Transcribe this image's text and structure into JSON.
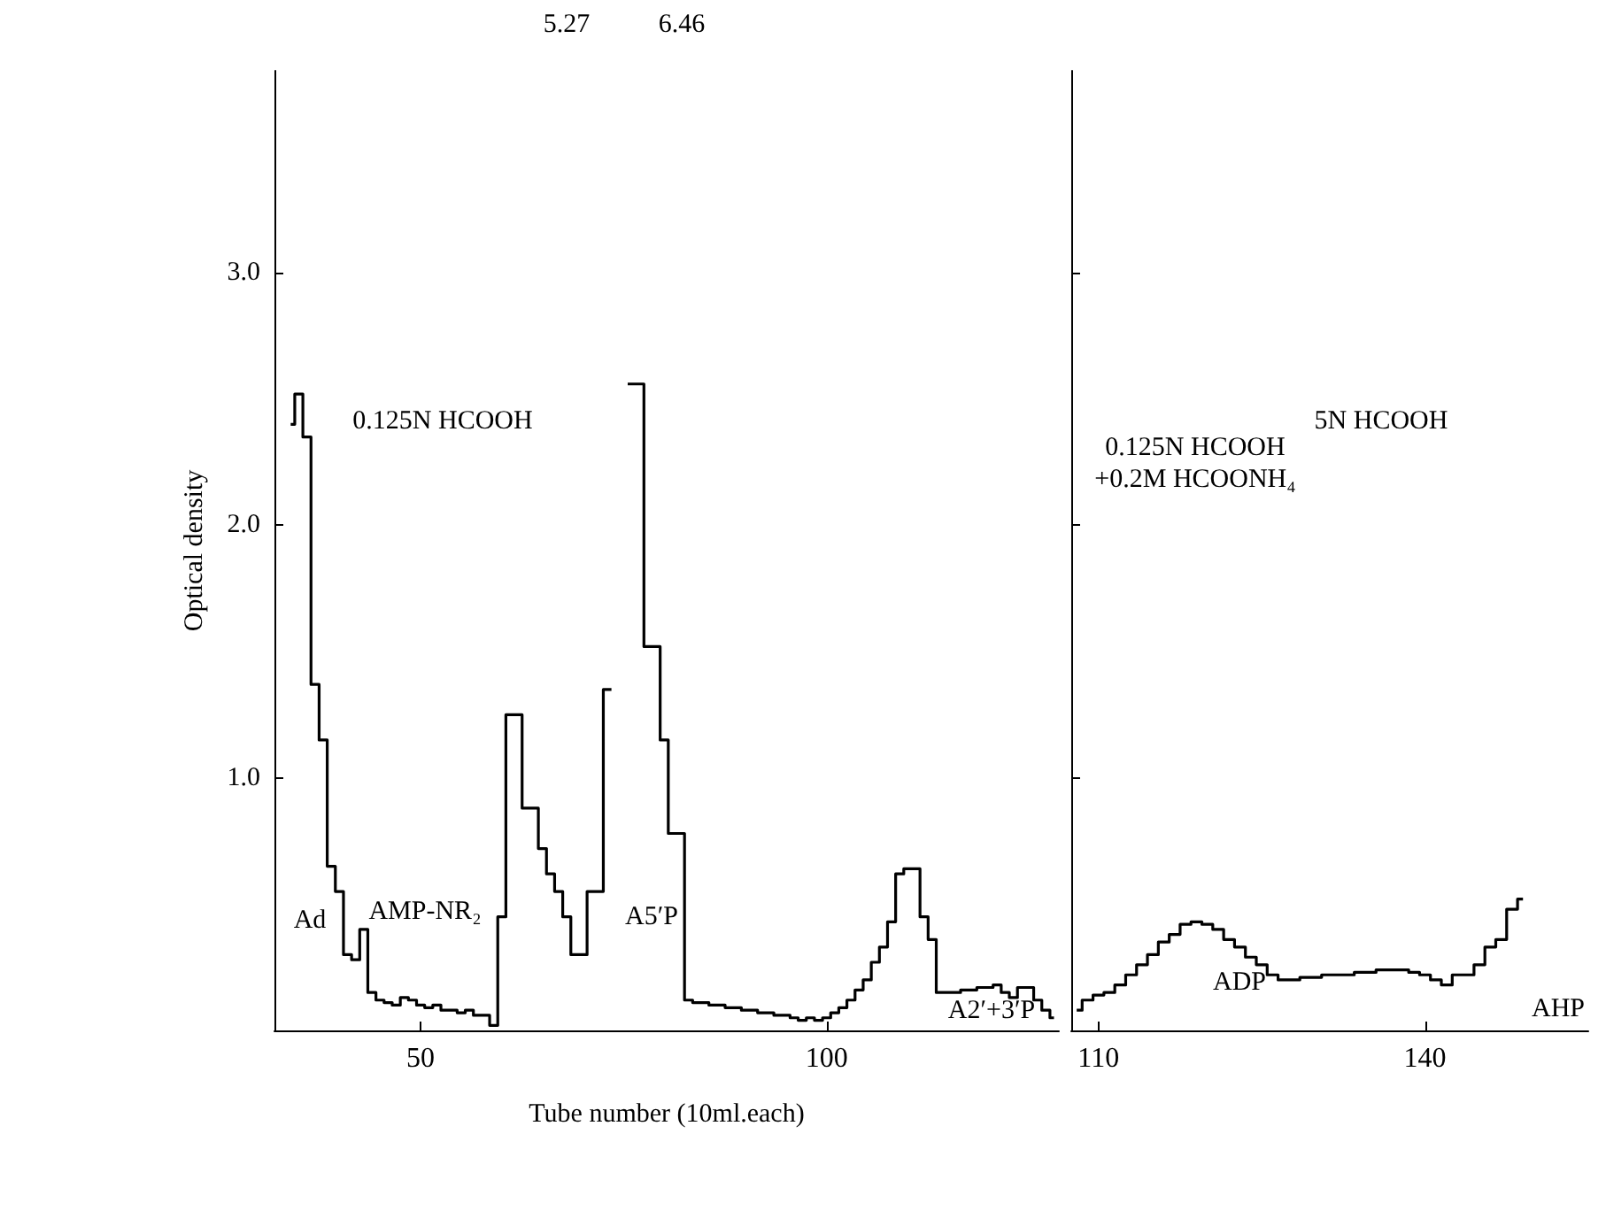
{
  "chart_data": [
    {
      "type": "step",
      "xlabel": "Tube number (10ml.each)",
      "ylabel": "Optical density",
      "x": [
        34,
        35,
        36,
        37,
        38,
        39,
        40,
        41,
        42,
        43,
        44,
        45,
        46,
        47,
        48,
        49,
        50,
        51,
        52,
        53,
        54,
        55,
        56,
        57,
        58,
        59,
        60,
        61,
        62,
        63,
        64,
        65,
        66,
        67,
        68,
        69,
        70,
        71,
        72,
        73,
        74,
        75,
        76,
        77,
        78,
        79,
        80,
        81,
        82,
        83,
        84,
        85,
        86,
        87,
        88,
        89,
        90,
        91,
        92,
        93,
        94,
        95,
        96,
        97,
        98,
        99,
        100,
        101,
        102,
        103,
        104,
        105,
        106,
        107,
        108,
        109,
        110,
        111,
        112,
        113,
        114,
        115,
        116,
        117,
        118,
        119,
        120,
        121,
        122,
        123,
        124,
        125,
        126,
        127,
        128
      ],
      "series": [
        {
          "color": "#000000",
          "values": [
            2.4,
            2.52,
            2.35,
            1.37,
            1.15,
            0.65,
            0.55,
            0.3,
            0.28,
            0.4,
            0.15,
            0.12,
            0.11,
            0.1,
            0.13,
            0.12,
            0.1,
            0.09,
            0.1,
            0.08,
            0.08,
            0.07,
            0.08,
            0.06,
            0.06,
            0.02,
            0.45,
            1.25,
            1.25,
            0.88,
            0.88,
            0.72,
            0.62,
            0.55,
            0.45,
            0.3,
            0.3,
            0.55,
            0.55,
            1.35,
            null,
            null,
            2.56,
            2.56,
            1.52,
            1.52,
            1.15,
            0.78,
            0.78,
            0.12,
            0.11,
            0.11,
            0.1,
            0.1,
            0.09,
            0.09,
            0.08,
            0.08,
            0.07,
            0.07,
            0.06,
            0.06,
            0.05,
            0.04,
            0.05,
            0.04,
            0.05,
            0.07,
            0.09,
            0.12,
            0.16,
            0.2,
            0.27,
            0.33,
            0.43,
            0.62,
            0.64,
            0.64,
            0.45,
            0.36,
            0.15,
            0.15,
            0.15,
            0.16,
            0.16,
            0.17,
            0.17,
            0.18,
            0.15,
            0.13,
            0.17,
            0.17,
            0.12,
            0.08,
            0.05
          ]
        }
      ],
      "xlim": [
        32,
        128.6
      ],
      "xticks": [
        50,
        100
      ],
      "ylim": [
        0,
        3.8
      ],
      "yticks": [
        {
          "value": 1,
          "label": "1.0"
        },
        {
          "value": 2,
          "label": "2.0"
        },
        {
          "value": 3,
          "label": "3.0"
        }
      ],
      "annotations": [
        "Ad",
        "AMP-NR₂",
        "A5′P",
        "A2′+3′P",
        "0.125N HCOOH",
        "5.27",
        "6.46"
      ]
    },
    {
      "type": "step",
      "tick_labels": "x",
      "x": [
        108,
        109,
        110,
        111,
        112,
        113,
        114,
        115,
        116,
        117,
        118,
        119,
        120,
        121,
        122,
        123,
        124,
        125,
        126,
        127,
        128,
        129,
        130,
        131,
        132,
        133,
        134,
        135,
        136,
        137,
        138,
        139,
        140,
        141,
        142,
        143,
        144,
        145,
        146,
        147,
        148,
        149
      ],
      "series": [
        {
          "color": "#000000",
          "values": [
            0.08,
            0.12,
            0.14,
            0.15,
            0.18,
            0.22,
            0.26,
            0.3,
            0.35,
            0.38,
            0.42,
            0.43,
            0.42,
            0.4,
            0.36,
            0.33,
            0.29,
            0.26,
            0.22,
            0.2,
            0.2,
            0.21,
            0.21,
            0.22,
            0.22,
            0.22,
            0.23,
            0.23,
            0.24,
            0.24,
            0.24,
            0.23,
            0.22,
            0.2,
            0.18,
            0.22,
            0.22,
            0.26,
            0.33,
            0.36,
            0.48,
            0.52
          ]
        }
      ],
      "xlim": [
        107.5,
        155
      ],
      "xticks": [
        110,
        140
      ],
      "ylim": [
        0,
        3.8
      ],
      "yticks": [
        {
          "value": 1,
          "label": null
        },
        {
          "value": 2,
          "label": null
        },
        {
          "value": 3,
          "label": null
        }
      ],
      "annotations": [
        "0.125N HCOOH\n+0.2M HCOONH₄",
        "5N HCOOH",
        "ADP",
        "AHP"
      ]
    }
  ]
}
